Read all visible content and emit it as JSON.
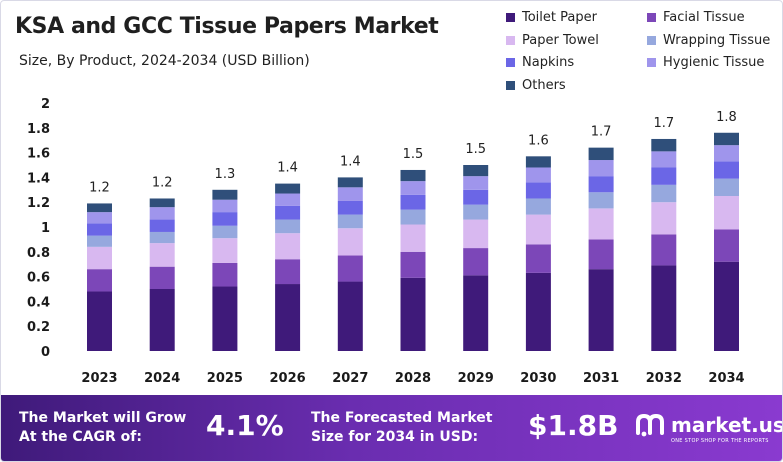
{
  "chart_data": {
    "type": "bar",
    "stacked": true,
    "title": "KSA and GCC Tissue Papers Market",
    "subtitle": "Size, By Product, 2024-2034 (USD Billion)",
    "categories": [
      "2023",
      "2024",
      "2025",
      "2026",
      "2027",
      "2028",
      "2029",
      "2030",
      "2031",
      "2032",
      "2034"
    ],
    "totals": [
      "1.2",
      "1.2",
      "1.3",
      "1.4",
      "1.4",
      "1.5",
      "1.5",
      "1.6",
      "1.7",
      "1.7",
      "1.8"
    ],
    "ylim": [
      0,
      2
    ],
    "yticks": [
      "0",
      "0.2",
      "0.4",
      "0.6",
      "0.8",
      "1",
      "1.2",
      "1.4",
      "1.6",
      "1.8",
      "2"
    ],
    "legend_position": "top-right",
    "series": [
      {
        "name": "Toilet Paper",
        "color": "#3f1a7a",
        "values": [
          0.48,
          0.5,
          0.52,
          0.54,
          0.56,
          0.59,
          0.61,
          0.63,
          0.66,
          0.69,
          0.72
        ]
      },
      {
        "name": "Facial Tissue",
        "color": "#7c47b8",
        "values": [
          0.18,
          0.18,
          0.19,
          0.2,
          0.21,
          0.21,
          0.22,
          0.23,
          0.24,
          0.25,
          0.26
        ]
      },
      {
        "name": "Paper Towel",
        "color": "#d8b8f0",
        "values": [
          0.18,
          0.19,
          0.2,
          0.21,
          0.22,
          0.22,
          0.23,
          0.24,
          0.25,
          0.26,
          0.27
        ]
      },
      {
        "name": "Wrapping Tissue",
        "color": "#96a8de",
        "values": [
          0.09,
          0.09,
          0.1,
          0.11,
          0.11,
          0.12,
          0.12,
          0.13,
          0.13,
          0.14,
          0.14
        ]
      },
      {
        "name": "Napkins",
        "color": "#6b66e6",
        "values": [
          0.1,
          0.1,
          0.11,
          0.11,
          0.11,
          0.12,
          0.12,
          0.13,
          0.13,
          0.14,
          0.14
        ]
      },
      {
        "name": "Hygienic Tissue",
        "color": "#9f95ec",
        "values": [
          0.09,
          0.1,
          0.1,
          0.1,
          0.11,
          0.11,
          0.11,
          0.12,
          0.13,
          0.13,
          0.13
        ]
      },
      {
        "name": "Others",
        "color": "#2f4f7a",
        "values": [
          0.07,
          0.07,
          0.08,
          0.08,
          0.08,
          0.09,
          0.09,
          0.09,
          0.1,
          0.1,
          0.1
        ]
      }
    ]
  },
  "footer": {
    "cagr_text_line1": "The Market will Grow",
    "cagr_text_line2": "At the CAGR of:",
    "cagr_value": "4.1%",
    "forecast_text_line1": "The Forecasted Market",
    "forecast_text_line2": "Size for 2034 in USD:",
    "forecast_value": "$1.8B",
    "brand_name": "market.us",
    "brand_tagline": "ONE STOP SHOP FOR THE REPORTS"
  }
}
